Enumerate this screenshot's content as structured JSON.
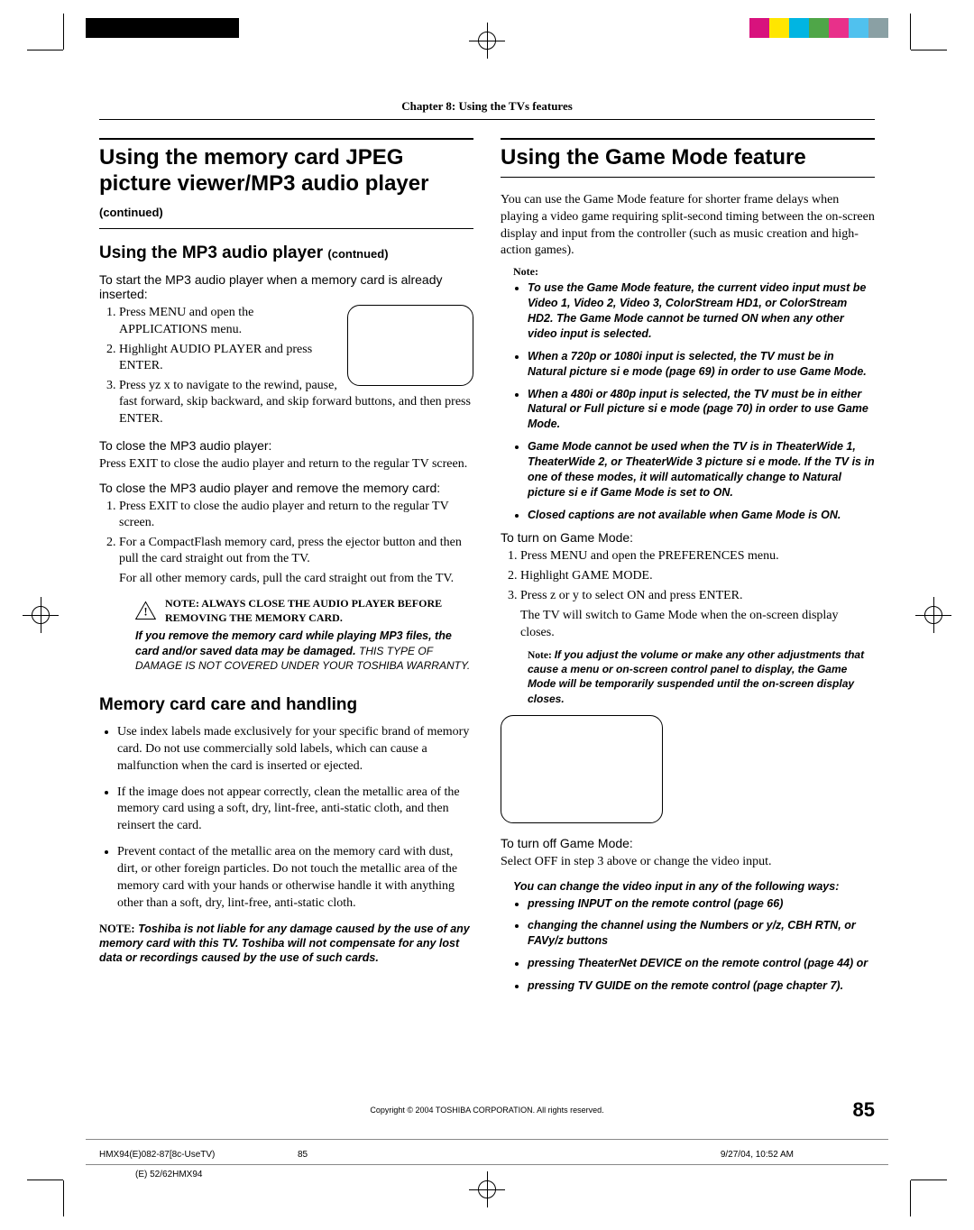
{
  "colors": {
    "bar": [
      "#d8127d",
      "#ffe600",
      "#00b5e2",
      "#4fa648",
      "#e8308a",
      "#50c1ee",
      "#8aa0a4"
    ]
  },
  "chapter": "Chapter 8: Using the TVs features",
  "left": {
    "h1a": "Using the memory card JPEG picture viewer/MP3 audio player",
    "h1a_cont": "(continued)",
    "h2a": "Using the MP3 audio player",
    "h2a_cont": "(contnued)",
    "lead1": "To start the MP3 audio player when a memory card is already inserted:",
    "ol1": [
      "Press MENU and open the APPLICATIONS menu.",
      "Highlight AUDIO PLAYER and press ENTER.",
      "Press yz  x     to navigate to the rewind, pause, fast forward, skip backward, and skip forward buttons, and then press ENTER."
    ],
    "lead2": "To close the MP3 audio player:",
    "p2": "Press EXIT to close the audio player and return to the regular TV screen.",
    "lead3": "To close the MP3 audio player and remove the memory card:",
    "ol3": [
      "Press EXIT to close the audio player and return to the regular TV screen.",
      "For a CompactFlash memory card, press the ejector button and then pull the card straight out from the TV."
    ],
    "p3b": "For all other memory cards, pull the card straight out from the TV.",
    "warn_title": "NOTE: ALWAYS CLOSE THE AUDIO PLAYER BEFORE REMOVING THE MEMORY CARD.",
    "warn_body1": "If you remove the memory card while playing MP3 files, the card and/or saved data may be damaged.",
    "warn_body2": "THIS TYPE OF DAMAGE IS NOT COVERED UNDER YOUR TOSHIBA WARRANTY.",
    "h2b": "Memory card care and handling",
    "care": [
      "Use index labels made exclusively for your specific brand of memory card. Do not use commercially sold labels, which can cause a malfunction when the card is inserted or ejected.",
      "If the image does not appear correctly, clean the metallic area of the memory card using a soft, dry, lint-free, anti-static cloth, and then reinsert the card.",
      "Prevent contact of the metallic area on the memory card with dust, dirt, or other foreign particles. Do not touch the metallic area of the memory card with your hands or otherwise handle it with anything other than a soft, dry, lint-free, anti-static cloth."
    ],
    "endnote_label": "NOTE:",
    "endnote": "Toshiba is not liable for any damage caused by the use of any memory card with this TV. Toshiba will not compensate for any lost data or recordings caused by the use of such cards."
  },
  "right": {
    "h1": "Using the Game Mode feature",
    "intro": "You can use the Game Mode feature for shorter frame delays when playing a video game requiring split-second timing between the on-screen display and input from the controller (such as music creation and high-action games).",
    "note_label": "Note:",
    "notes": [
      "To use the Game Mode feature, the current video input must be Video 1, Video 2, Video 3, ColorStream HD1, or ColorStream HD2. The Game Mode cannot be turned ON when any other video input is selected.",
      "When a 720p or 1080i input is selected, the TV must be in Natural picture si e mode (page 69) in order to use Game Mode.",
      "When a 480i or 480p input is selected, the TV must be in either Natural or Full picture si e mode (page 70) in order to use Game Mode.",
      "Game Mode cannot be used when the TV is in TheaterWide 1, TheaterWide 2, or TheaterWide 3 picture si e mode. If the TV is in one of these modes, it will automatically change to Natural picture si e if Game Mode is set to ON.",
      "Closed captions are not available when Game Mode is ON."
    ],
    "lead_on": "To turn on Game Mode:",
    "ol_on": [
      "Press MENU and open the PREFERENCES menu.",
      "Highlight GAME MODE.",
      "Press z or y to select ON and press ENTER."
    ],
    "p_on": "The TV will switch to Game Mode when the on-screen display closes.",
    "inline_note_label": "Note:",
    "inline_note": "If you adjust the volume or make any other adjustments that cause a menu or on-screen control panel to display, the Game Mode will be temporarily suspended until the on-screen display closes.",
    "lead_off": "To turn off Game Mode:",
    "p_off": "Select OFF in step 3 above or change the video input.",
    "change_lead": "You can change the video input in any of the following ways:",
    "change": [
      "pressing INPUT on the remote control (page 66)",
      "changing the channel using the Numbers or y/z, CBH RTN, or FAVy/z buttons",
      "pressing TheaterNet DEVICE on the remote control (page 44)  or",
      "pressing TV GUIDE on the remote control (page chapter 7)."
    ]
  },
  "copyright": "Copyright © 2004 TOSHIBA CORPORATION. All rights reserved.",
  "page_num": "85",
  "footer": {
    "left": "HMX94(E)082-87[8c-UseTV)",
    "mid": "85",
    "right": "9/27/04, 10:52 AM",
    "code": "(E) 52/62HMX94"
  }
}
